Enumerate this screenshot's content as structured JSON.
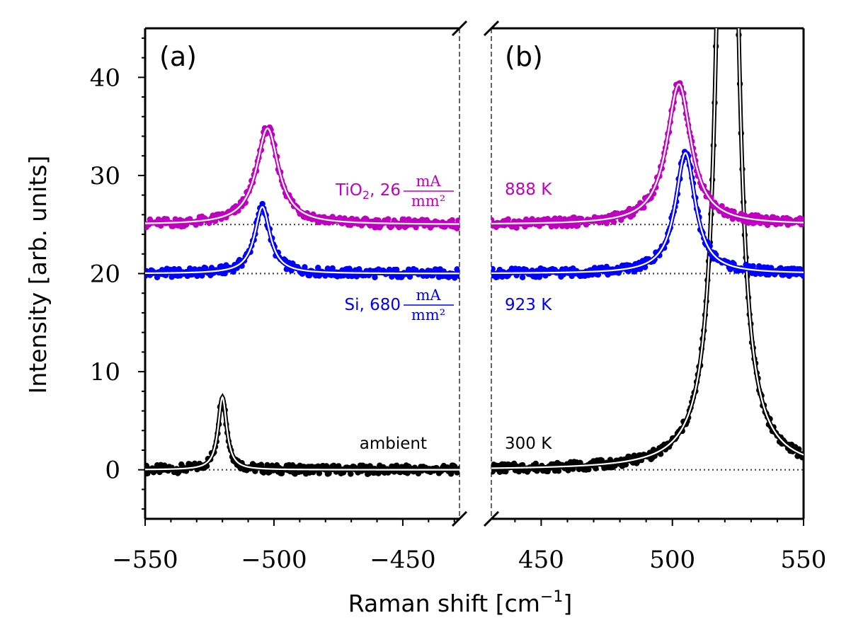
{
  "chart_data": [
    {
      "panel": "(a)",
      "type": "line",
      "xlim": [
        -550,
        -428
      ],
      "ylim": [
        -5,
        45
      ],
      "xticks": [
        -550,
        -500,
        -450
      ],
      "yticks": [
        0,
        10,
        20,
        30,
        40
      ],
      "series": [
        {
          "name": "ambient",
          "color": "#000000",
          "offset": 0,
          "center": -520,
          "width": 2.0,
          "amplitude": 7.4
        },
        {
          "name": "Si, 680 mA/mm²",
          "color": "#0000ff",
          "offset": 20,
          "center": -504.5,
          "width": 3.6,
          "amplitude": 6.8
        },
        {
          "name": "TiO₂, 26 mA/mm²",
          "color": "#c000c0",
          "offset": 25,
          "center": -502.5,
          "width": 5.2,
          "amplitude": 9.8
        }
      ]
    },
    {
      "panel": "(b)",
      "type": "line",
      "xlim": [
        431,
        550
      ],
      "ylim": [
        -5,
        45
      ],
      "xticks": [
        450,
        500,
        550
      ],
      "series": [
        {
          "name": "300 K",
          "color": "#000000",
          "offset": 0,
          "center": 521,
          "width": 3.3,
          "amplitude": 120
        },
        {
          "name": "923 K",
          "color": "#0000ff",
          "offset": 20,
          "center": 505,
          "width": 4.6,
          "amplitude": 12.3
        },
        {
          "name": "888 K",
          "color": "#c000c0",
          "offset": 25,
          "center": 502.5,
          "width": 5.6,
          "amplitude": 14.3
        }
      ]
    }
  ],
  "labels": {
    "panel_a": "(a)",
    "panel_b": "(b)",
    "ylabel": "Intensity [arb. units]",
    "xlabel_main": "Raman shift [cm",
    "xlabel_sup": "−1",
    "xlabel_close": "]",
    "tio2_prefix": "TiO",
    "tio2_sub": "2",
    "tio2_suffix": ", 26",
    "si_prefix": "Si, 680",
    "unit_num": "mA",
    "unit_den": "mm²",
    "ambient": "ambient",
    "t888": "888 K",
    "t923": "923 K",
    "t300": "300 K"
  }
}
